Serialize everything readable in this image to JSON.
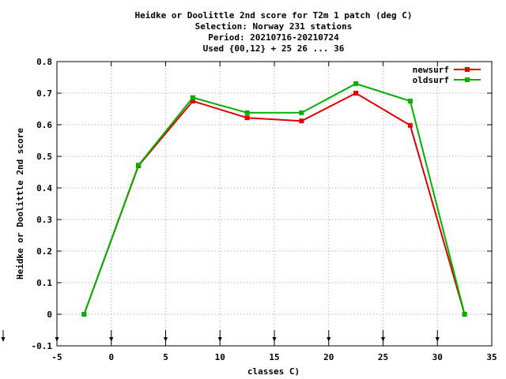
{
  "chart_data": {
    "type": "line",
    "title_lines": [
      "Heidke or Doolittle 2nd score  for T2m 1 patch (deg C)",
      "Selection: Norway    231 stations",
      "Period: 20210716-20210724",
      "Used {00,12} + 25 26 ... 36"
    ],
    "xlabel": "classes C)",
    "ylabel": "Heidke or Doolittle 2nd score",
    "xlim": [
      -5,
      35
    ],
    "ylim": [
      -0.1,
      0.8
    ],
    "xticks": [
      -5,
      0,
      5,
      10,
      15,
      20,
      25,
      30,
      35
    ],
    "yticks": [
      -0.1,
      0,
      0.1,
      0.2,
      0.3,
      0.4,
      0.5,
      0.6,
      0.7,
      0.8
    ],
    "xtick_labels": [
      "-5",
      "0",
      "5",
      "10",
      "15",
      "20",
      "25",
      "30",
      "35"
    ],
    "ytick_labels": [
      "-0.1",
      "0",
      "0.1",
      "0.2",
      "0.3",
      "0.4",
      "0.5",
      "0.6",
      "0.7",
      "0.8"
    ],
    "grid": true,
    "legend_position": "top-right",
    "class_markers_x": [
      -5,
      0,
      5,
      10,
      15,
      20,
      25,
      30
    ],
    "series": [
      {
        "name": "newsurf",
        "color": "#e00000",
        "x": [
          -2.5,
          2.5,
          7.5,
          12.5,
          17.5,
          22.5,
          27.5,
          32.5
        ],
        "y": [
          0.0,
          0.47,
          0.675,
          0.622,
          0.612,
          0.7,
          0.598,
          0.0
        ]
      },
      {
        "name": "oldsurf",
        "color": "#00b000",
        "x": [
          -2.5,
          2.5,
          7.5,
          12.5,
          17.5,
          22.5,
          27.5,
          32.5
        ],
        "y": [
          0.0,
          0.472,
          0.686,
          0.638,
          0.638,
          0.73,
          0.675,
          0.0
        ]
      }
    ]
  }
}
